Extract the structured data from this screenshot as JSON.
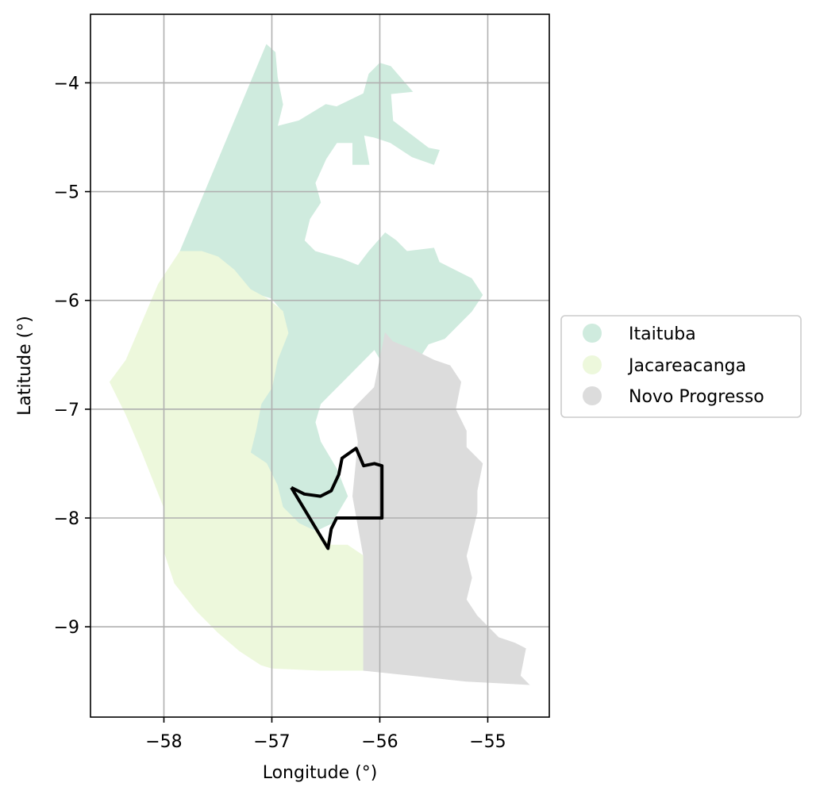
{
  "chart_data": {
    "type": "map",
    "xlabel": "Longitude (°)",
    "ylabel": "Latitude (°)",
    "xlim": [
      -58.68,
      -54.43
    ],
    "ylim": [
      -9.83,
      -3.37
    ],
    "xticks": [
      -58,
      -57,
      -56,
      -55
    ],
    "xtick_labels": [
      "−58",
      "−57",
      "−56",
      "−55"
    ],
    "yticks": [
      -4,
      -5,
      -6,
      -7,
      -8,
      -9
    ],
    "ytick_labels": [
      "−4",
      "−5",
      "−6",
      "−7",
      "−8",
      "−9"
    ],
    "grid": true,
    "legend_position": "right",
    "legend": [
      {
        "label": "Itaituba",
        "color": "#cfebde"
      },
      {
        "label": "Jacareacanga",
        "color": "#edf8dc"
      },
      {
        "label": "Novo Progresso",
        "color": "#dcdcdc"
      }
    ],
    "regions": [
      {
        "name": "Itaituba",
        "color": "#cfebde",
        "coords": [
          [
            -57.05,
            -3.65
          ],
          [
            -56.97,
            -3.72
          ],
          [
            -56.95,
            -3.95
          ],
          [
            -56.9,
            -4.2
          ],
          [
            -56.95,
            -4.4
          ],
          [
            -56.75,
            -4.35
          ],
          [
            -56.5,
            -4.2
          ],
          [
            -56.4,
            -4.22
          ],
          [
            -56.15,
            -4.1
          ],
          [
            -56.1,
            -3.92
          ],
          [
            -56.0,
            -3.82
          ],
          [
            -55.9,
            -3.85
          ],
          [
            -55.7,
            -4.08
          ],
          [
            -55.9,
            -4.1
          ],
          [
            -55.88,
            -4.35
          ],
          [
            -55.55,
            -4.6
          ],
          [
            -55.45,
            -4.62
          ],
          [
            -55.5,
            -4.75
          ],
          [
            -55.7,
            -4.68
          ],
          [
            -55.9,
            -4.55
          ],
          [
            -56.05,
            -4.5
          ],
          [
            -56.15,
            -4.48
          ],
          [
            -56.1,
            -4.75
          ],
          [
            -56.25,
            -4.75
          ],
          [
            -56.25,
            -4.55
          ],
          [
            -56.4,
            -4.55
          ],
          [
            -56.5,
            -4.7
          ],
          [
            -56.6,
            -4.92
          ],
          [
            -56.55,
            -5.1
          ],
          [
            -56.65,
            -5.25
          ],
          [
            -56.7,
            -5.45
          ],
          [
            -56.6,
            -5.55
          ],
          [
            -56.35,
            -5.62
          ],
          [
            -56.2,
            -5.68
          ],
          [
            -56.1,
            -5.55
          ],
          [
            -55.95,
            -5.38
          ],
          [
            -55.85,
            -5.45
          ],
          [
            -55.75,
            -5.55
          ],
          [
            -55.5,
            -5.52
          ],
          [
            -55.45,
            -5.65
          ],
          [
            -55.35,
            -5.7
          ],
          [
            -55.15,
            -5.8
          ],
          [
            -55.05,
            -5.95
          ],
          [
            -55.15,
            -6.1
          ],
          [
            -55.25,
            -6.2
          ],
          [
            -55.4,
            -6.35
          ],
          [
            -55.55,
            -6.4
          ],
          [
            -55.65,
            -6.55
          ],
          [
            -55.75,
            -6.65
          ],
          [
            -55.8,
            -6.8
          ],
          [
            -55.9,
            -6.7
          ],
          [
            -56.05,
            -6.45
          ],
          [
            -56.2,
            -6.6
          ],
          [
            -56.35,
            -6.75
          ],
          [
            -56.45,
            -6.85
          ],
          [
            -56.55,
            -6.95
          ],
          [
            -56.6,
            -7.12
          ],
          [
            -56.55,
            -7.3
          ],
          [
            -56.4,
            -7.55
          ],
          [
            -56.3,
            -7.8
          ],
          [
            -56.45,
            -8.05
          ],
          [
            -56.6,
            -8.12
          ],
          [
            -56.75,
            -8.05
          ],
          [
            -56.9,
            -7.9
          ],
          [
            -56.95,
            -7.7
          ],
          [
            -57.05,
            -7.5
          ],
          [
            -57.2,
            -7.4
          ],
          [
            -57.15,
            -7.2
          ],
          [
            -57.1,
            -6.95
          ],
          [
            -57.0,
            -6.8
          ],
          [
            -56.95,
            -6.55
          ],
          [
            -56.85,
            -6.3
          ],
          [
            -56.9,
            -6.1
          ],
          [
            -57.0,
            -5.98
          ],
          [
            -57.2,
            -5.92
          ],
          [
            -57.3,
            -5.82
          ],
          [
            -57.4,
            -5.72
          ],
          [
            -57.5,
            -5.65
          ],
          [
            -57.65,
            -5.58
          ],
          [
            -57.8,
            -5.58
          ],
          [
            -57.85,
            -5.55
          ]
        ]
      },
      {
        "name": "Jacareacanga",
        "color": "#edf8dc",
        "coords": [
          [
            -57.85,
            -5.55
          ],
          [
            -57.65,
            -5.55
          ],
          [
            -57.5,
            -5.6
          ],
          [
            -57.35,
            -5.72
          ],
          [
            -57.2,
            -5.9
          ],
          [
            -57.05,
            -5.98
          ],
          [
            -56.9,
            -6.1
          ],
          [
            -56.85,
            -6.3
          ],
          [
            -56.95,
            -6.55
          ],
          [
            -57.0,
            -6.8
          ],
          [
            -57.1,
            -6.95
          ],
          [
            -57.15,
            -7.2
          ],
          [
            -57.2,
            -7.4
          ],
          [
            -57.05,
            -7.5
          ],
          [
            -56.95,
            -7.7
          ],
          [
            -56.9,
            -7.9
          ],
          [
            -56.75,
            -8.05
          ],
          [
            -56.6,
            -8.12
          ],
          [
            -56.45,
            -8.25
          ],
          [
            -56.3,
            -8.25
          ],
          [
            -56.15,
            -8.35
          ],
          [
            -56.15,
            -9.4
          ],
          [
            -56.55,
            -9.4
          ],
          [
            -57.0,
            -9.38
          ],
          [
            -57.1,
            -9.35
          ],
          [
            -57.3,
            -9.22
          ],
          [
            -57.5,
            -9.05
          ],
          [
            -57.7,
            -8.85
          ],
          [
            -57.9,
            -8.6
          ],
          [
            -58.0,
            -8.3
          ],
          [
            -58.0,
            -7.9
          ],
          [
            -58.2,
            -7.4
          ],
          [
            -58.35,
            -7.05
          ],
          [
            -58.5,
            -6.75
          ],
          [
            -58.35,
            -6.55
          ],
          [
            -58.2,
            -6.2
          ],
          [
            -58.05,
            -5.85
          ]
        ]
      },
      {
        "name": "Novo Progresso",
        "color": "#dcdcdc",
        "coords": [
          [
            -55.95,
            -6.3
          ],
          [
            -55.88,
            -6.38
          ],
          [
            -55.7,
            -6.45
          ],
          [
            -55.5,
            -6.55
          ],
          [
            -55.35,
            -6.6
          ],
          [
            -55.25,
            -6.75
          ],
          [
            -55.3,
            -7.0
          ],
          [
            -55.2,
            -7.2
          ],
          [
            -55.2,
            -7.35
          ],
          [
            -55.05,
            -7.5
          ],
          [
            -55.1,
            -7.75
          ],
          [
            -55.1,
            -7.95
          ],
          [
            -55.15,
            -8.15
          ],
          [
            -55.2,
            -8.35
          ],
          [
            -55.15,
            -8.55
          ],
          [
            -55.2,
            -8.75
          ],
          [
            -55.1,
            -8.9
          ],
          [
            -54.95,
            -9.05
          ],
          [
            -54.9,
            -9.1
          ],
          [
            -54.75,
            -9.15
          ],
          [
            -54.65,
            -9.2
          ],
          [
            -54.7,
            -9.45
          ],
          [
            -54.62,
            -9.53
          ],
          [
            -55.2,
            -9.5
          ],
          [
            -56.15,
            -9.4
          ],
          [
            -56.15,
            -8.35
          ],
          [
            -56.25,
            -7.8
          ],
          [
            -56.2,
            -7.3
          ],
          [
            -56.25,
            -7.0
          ],
          [
            -56.05,
            -6.8
          ]
        ]
      }
    ],
    "outline": [
      [
        -56.82,
        -7.72
      ],
      [
        -56.7,
        -7.78
      ],
      [
        -56.55,
        -7.8
      ],
      [
        -56.45,
        -7.75
      ],
      [
        -56.38,
        -7.6
      ],
      [
        -56.35,
        -7.45
      ],
      [
        -56.25,
        -7.38
      ],
      [
        -56.22,
        -7.36
      ],
      [
        -56.18,
        -7.45
      ],
      [
        -56.15,
        -7.52
      ],
      [
        -56.05,
        -7.5
      ],
      [
        -55.98,
        -7.52
      ],
      [
        -55.98,
        -8.0
      ],
      [
        -56.4,
        -8.0
      ],
      [
        -56.45,
        -8.1
      ],
      [
        -56.48,
        -8.28
      ],
      [
        -56.82,
        -7.72
      ]
    ]
  }
}
